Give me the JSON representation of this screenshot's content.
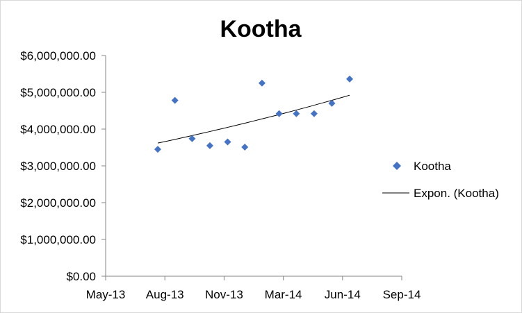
{
  "chart_data": {
    "type": "scatter",
    "title": "Kootha",
    "xlabel": "",
    "ylabel": "",
    "x_ticks": [
      "May-13",
      "Aug-13",
      "Nov-13",
      "Mar-14",
      "Jun-14",
      "Sep-14"
    ],
    "y_ticks": [
      "$0.00",
      "$1,000,000.00",
      "$2,000,000.00",
      "$3,000,000.00",
      "$4,000,000.00",
      "$5,000,000.00",
      "$6,000,000.00"
    ],
    "ylim": [
      0,
      6000000
    ],
    "x_tick_count": 6,
    "series": [
      {
        "name": "Kootha",
        "marker": "diamond",
        "color": "#4472c4",
        "x_index": [
          0.88,
          1.17,
          1.46,
          1.76,
          2.06,
          2.35,
          2.64,
          2.93,
          3.22,
          3.52,
          3.82,
          4.12
        ],
        "values": [
          3450000,
          4780000,
          3740000,
          3550000,
          3650000,
          3510000,
          5250000,
          4420000,
          4420000,
          4420000,
          4700000,
          5360000
        ]
      }
    ],
    "trendline": {
      "name": "Expon. (Kootha)",
      "type": "exponential",
      "color": "#000000",
      "x_index": [
        0.88,
        4.12
      ],
      "values": [
        3620000,
        4920000
      ]
    },
    "legend": {
      "position": "right",
      "entries": [
        "Kootha",
        "Expon. (Kootha)"
      ]
    },
    "grid": false
  }
}
